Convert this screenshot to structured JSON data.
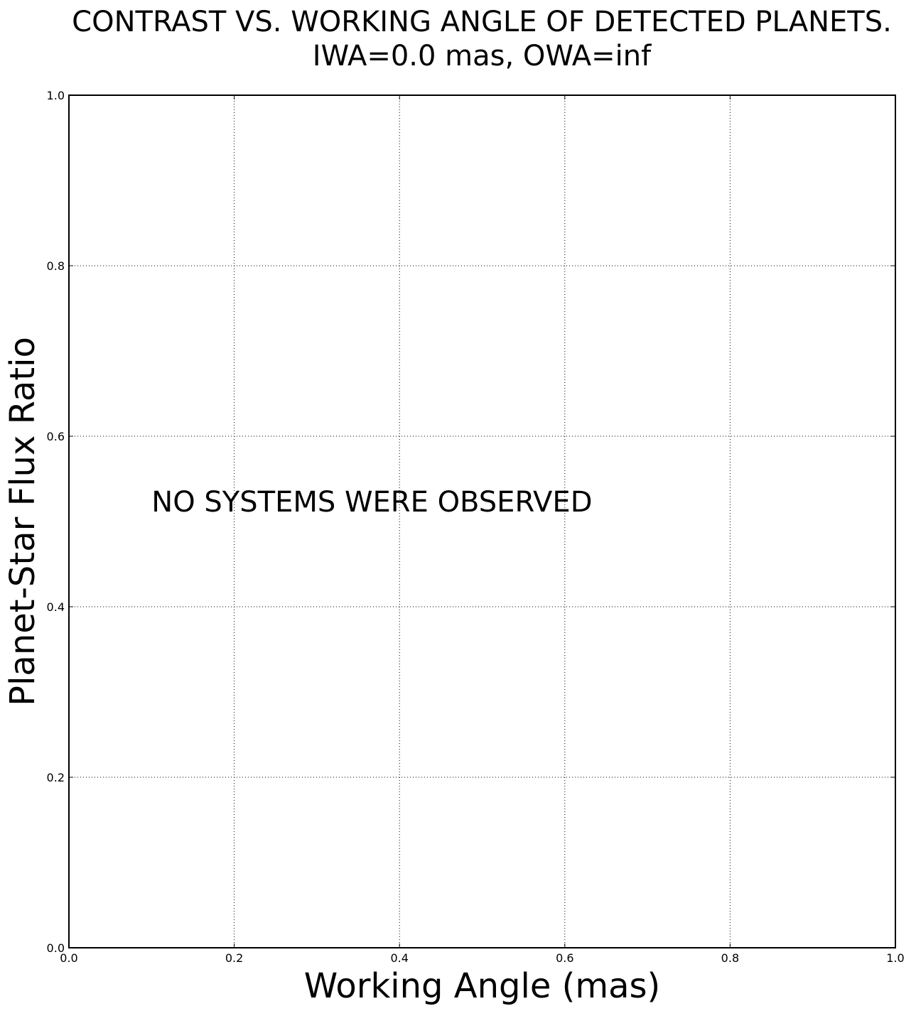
{
  "chart_data": {
    "type": "scatter",
    "title_line1": "CONTRAST VS. WORKING ANGLE OF DETECTED PLANETS.",
    "title_line2": "IWA=0.0 mas, OWA=inf",
    "xlabel": "Working Angle (mas)",
    "ylabel": "Planet-Star Flux Ratio",
    "xlim": [
      0.0,
      1.0
    ],
    "ylim": [
      0.0,
      1.0
    ],
    "x_ticks": [
      "0.0",
      "0.2",
      "0.4",
      "0.6",
      "0.8",
      "1.0"
    ],
    "y_ticks": [
      "0.0",
      "0.2",
      "0.4",
      "0.6",
      "0.8",
      "1.0"
    ],
    "grid": true,
    "series": [],
    "annotation": {
      "text": "NO SYSTEMS WERE OBSERVED",
      "x": 0.1,
      "y": 0.5
    }
  }
}
